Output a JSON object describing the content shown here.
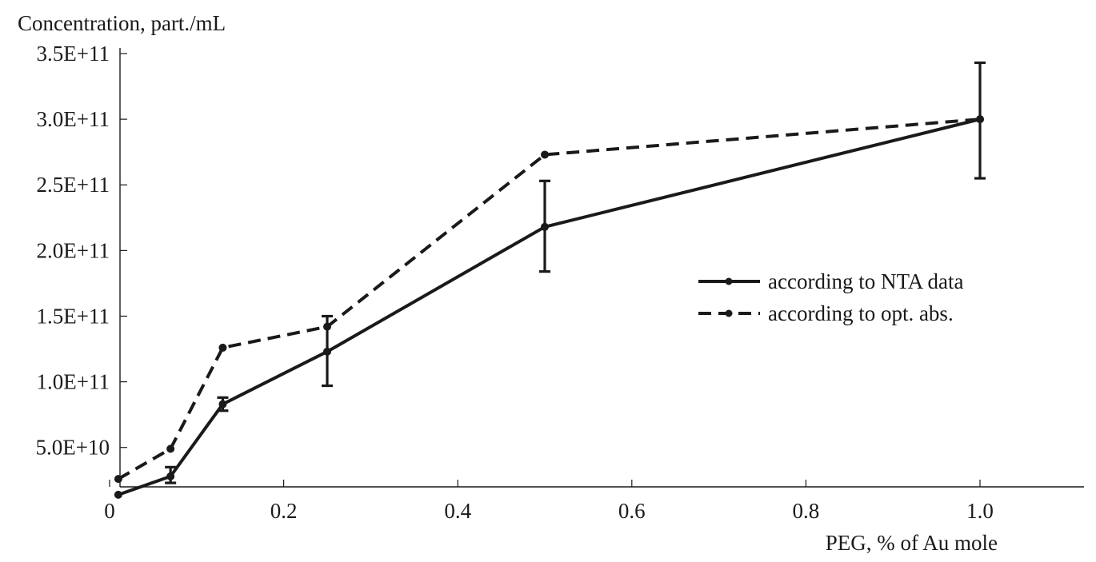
{
  "chart_data": {
    "type": "line",
    "ylabel": "Concentration, part./mL",
    "xlabel": "PEG, % of Au mole",
    "xlim": [
      0,
      1.12
    ],
    "ylim": [
      20000000000.0,
      350000000000.0
    ],
    "x_ticks": [
      {
        "value": 0,
        "label": "0"
      },
      {
        "value": 0.2,
        "label": "0.2"
      },
      {
        "value": 0.4,
        "label": "0.4"
      },
      {
        "value": 0.6,
        "label": "0.6"
      },
      {
        "value": 0.8,
        "label": "0.8"
      },
      {
        "value": 1.0,
        "label": "1.0"
      }
    ],
    "y_ticks": [
      {
        "value": 50000000000.0,
        "label": "5.0E+10"
      },
      {
        "value": 100000000000.0,
        "label": "1.0E+11"
      },
      {
        "value": 150000000000.0,
        "label": "1.5E+11"
      },
      {
        "value": 200000000000.0,
        "label": "2.0E+11"
      },
      {
        "value": 250000000000.0,
        "label": "2.5E+11"
      },
      {
        "value": 300000000000.0,
        "label": "3.0E+11"
      },
      {
        "value": 350000000000.0,
        "label": "3.5E+11"
      }
    ],
    "grid": false,
    "legend_position": "right",
    "series": [
      {
        "name": "according to NTA data",
        "style": "solid",
        "color": "#1a1a1a",
        "x": [
          0.01,
          0.07,
          0.13,
          0.25,
          0.5,
          1.0
        ],
        "y": [
          14000000000.0,
          28000000000.0,
          83000000000.0,
          123000000000.0,
          218000000000.0,
          300000000000.0
        ],
        "err_low": [
          null,
          23000000000.0,
          78000000000.0,
          97000000000.0,
          184000000000.0,
          255000000000.0
        ],
        "err_high": [
          null,
          35000000000.0,
          88000000000.0,
          150000000000.0,
          253000000000.0,
          343000000000.0
        ]
      },
      {
        "name": "according to opt. abs.",
        "style": "dashed",
        "color": "#1a1a1a",
        "x": [
          0.01,
          0.07,
          0.13,
          0.25,
          0.5,
          1.0
        ],
        "y": [
          26000000000.0,
          49000000000.0,
          126000000000.0,
          142000000000.0,
          273000000000.0,
          300000000000.0
        ]
      }
    ]
  }
}
